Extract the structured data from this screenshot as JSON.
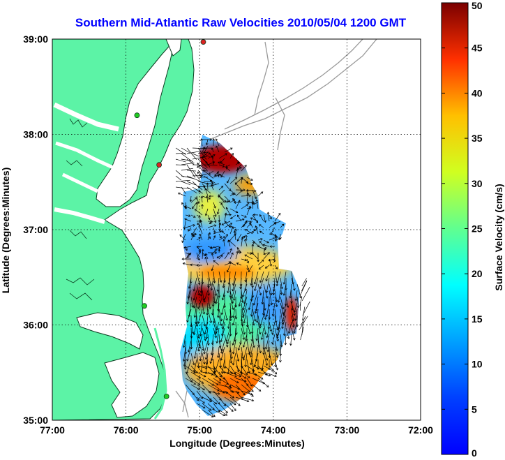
{
  "title": "Southern Mid-Atlantic Raw Velocities 2010/05/04 1200 GMT",
  "xlabel": "Longitude (Degrees:Minutes)",
  "ylabel": "Latitude (Degrees:Minutes)",
  "x_ticks": [
    "77:00",
    "76:00",
    "75:00",
    "74:00",
    "73:00",
    "72:00"
  ],
  "y_ticks": [
    "39:00",
    "38:00",
    "37:00",
    "36:00",
    "35:00"
  ],
  "colorbar": {
    "label": "Surface Velocity (cm/s)",
    "ticks": [
      "0",
      "5",
      "10",
      "15",
      "20",
      "25",
      "30",
      "35",
      "40",
      "45",
      "50"
    ],
    "range": [
      0,
      50
    ],
    "colormap": "jet"
  },
  "colors": {
    "title": "#0000ff",
    "land": "#5cf3a6",
    "coast": "#0b3b1f",
    "bathymetry": "#9a9a9a",
    "gridline": "#000000",
    "station": [
      "#22cc22",
      "#dd2222"
    ]
  },
  "chart_data": {
    "type": "heatmap",
    "title": "Southern Mid-Atlantic Raw Velocities 2010/05/04 1200 GMT",
    "xlabel": "Longitude (Degrees:Minutes)",
    "ylabel": "Latitude (Degrees:Minutes)",
    "xlim": [
      -77,
      -72
    ],
    "ylim": [
      35,
      39
    ],
    "grid": true,
    "colorbar_label": "Surface Velocity (cm/s)",
    "clim": [
      0,
      50
    ],
    "hotspots": [
      {
        "lon": -74.8,
        "lat": 37.65,
        "speed": 45
      },
      {
        "lon": -75.15,
        "lat": 36.25,
        "speed": 45
      },
      {
        "lon": -73.8,
        "lat": 36.1,
        "speed": 40
      },
      {
        "lon": -74.6,
        "lat": 35.55,
        "speed": 33
      },
      {
        "lon": -74.7,
        "lat": 36.45,
        "speed": 28
      },
      {
        "lon": -75.1,
        "lat": 36.9,
        "speed": 10
      },
      {
        "lon": -74.1,
        "lat": 36.05,
        "speed": 8
      },
      {
        "lon": -74.4,
        "lat": 37.0,
        "speed": 11
      }
    ],
    "stations": [
      {
        "lon": -74.95,
        "lat": 38.97,
        "color": "red"
      },
      {
        "lon": -75.85,
        "lat": 38.2,
        "color": "green"
      },
      {
        "lon": -75.55,
        "lat": 37.68,
        "color": "red"
      },
      {
        "lon": -75.75,
        "lat": 36.2,
        "color": "green"
      },
      {
        "lon": -75.45,
        "lat": 35.25,
        "color": "green"
      }
    ]
  }
}
